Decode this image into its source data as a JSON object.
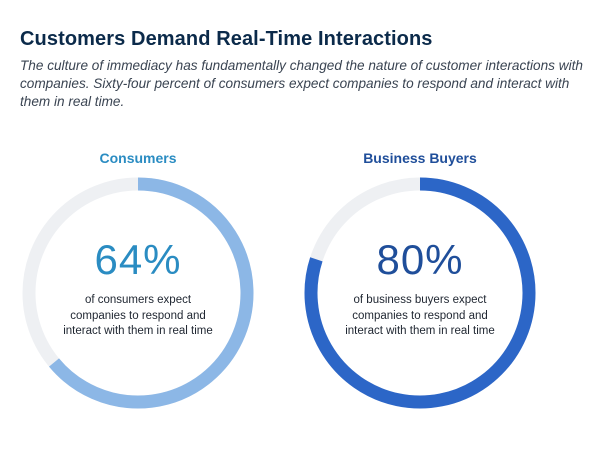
{
  "title": "Customers Demand Real-Time Interactions",
  "subtitle": "The culture of immediacy has fundamentally changed the nature of customer interactions with companies. Sixty-four percent of consumers expect companies to respond and interact with them in real time.",
  "colors": {
    "title": "#0b2a4a",
    "track": "#eef0f3",
    "consumers_ring": "#8cb7e6",
    "consumers_text": "#2a8cc2",
    "business_ring": "#2c66c7",
    "business_text": "#1f4e9a"
  },
  "chart_data": [
    {
      "type": "pie",
      "title": "Consumers",
      "value": 64,
      "value_label": "64%",
      "caption": "of consumers expect companies to respond and interact with them in real time"
    },
    {
      "type": "pie",
      "title": "Business Buyers",
      "value": 80,
      "value_label": "80%",
      "caption": "of business buyers expect companies to respond and interact with them in real time"
    }
  ]
}
